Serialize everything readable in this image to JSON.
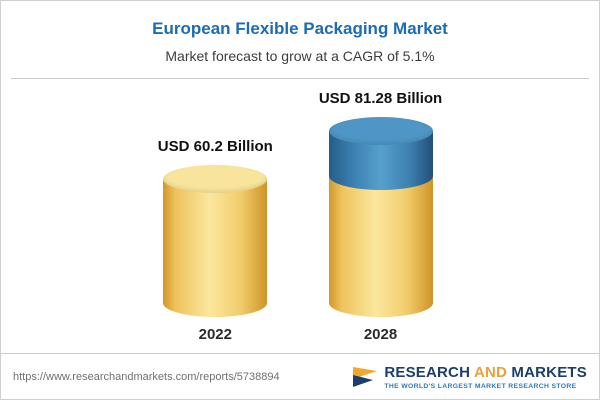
{
  "chart_data": {
    "type": "bar",
    "style": "3d-cylinder",
    "title": "European Flexible Packaging Market",
    "subtitle": "Market forecast to grow at a CAGR of 5.1%",
    "unit": "USD Billion",
    "cagr": "5.1%",
    "categories": [
      "2022",
      "2028"
    ],
    "values": [
      60.2,
      81.28
    ],
    "value_labels": [
      "USD 60.2 Billion",
      "USD 81.28 Billion"
    ],
    "legend": "none",
    "colors": {
      "base_gold": "#f2cc6b",
      "growth_blue": "#4d96c5",
      "title_blue": "#1b6cb5"
    },
    "bars": [
      {
        "category": "2022",
        "label": "USD 60.2 Billion",
        "total": 60.2,
        "segments": [
          {
            "name": "base",
            "value": 60.2,
            "color": "gold"
          }
        ]
      },
      {
        "category": "2028",
        "label": "USD 81.28 Billion",
        "total": 81.28,
        "segments": [
          {
            "name": "base",
            "value": 60.2,
            "color": "gold"
          },
          {
            "name": "growth",
            "value": 21.08,
            "color": "blue"
          }
        ]
      }
    ]
  },
  "footer": {
    "url": "https://www.researchandmarkets.com/reports/5738894",
    "logo": {
      "word1": "RESEARCH",
      "word2": "AND",
      "word3": "MARKETS",
      "tagline": "THE WORLD'S LARGEST MARKET RESEARCH STORE"
    }
  }
}
